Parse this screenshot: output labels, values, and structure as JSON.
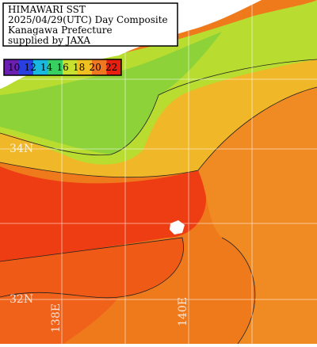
{
  "header": {
    "lines": [
      "HIMAWARI SST",
      "2025/04/29(UTC) Day Composite",
      "Kanagawa Prefecture",
      "supplied by JAXA"
    ]
  },
  "colorbar": {
    "labels": [
      10,
      12,
      14,
      16,
      18,
      20,
      22
    ]
  },
  "grid_labels": {
    "lat": [
      "34N",
      "32N"
    ],
    "lon": [
      "138E",
      "140E"
    ]
  }
}
